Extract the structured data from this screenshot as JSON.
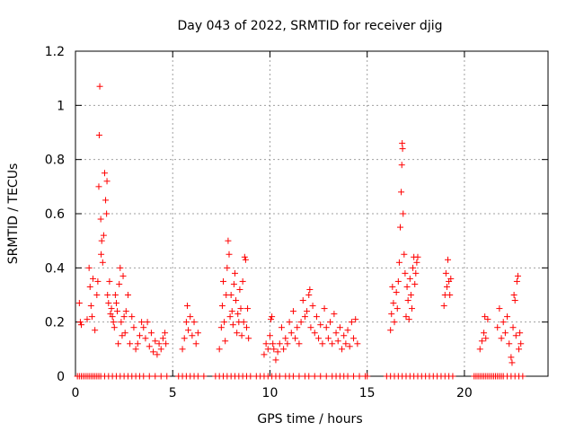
{
  "chart_data": {
    "type": "scatter",
    "title": "Day 043 of 2022, SRMTID for receiver djig",
    "xlabel": "GPS time / hours",
    "ylabel": "SRMTID / TECUs",
    "xlim": [
      0,
      24.3
    ],
    "ylim": [
      0,
      1.2
    ],
    "grid": true,
    "x_ticks": [
      0,
      5,
      10,
      15,
      20
    ],
    "x_tick_labels": [
      "0",
      "5",
      "10",
      "15",
      "20"
    ],
    "y_ticks": [
      0,
      0.2,
      0.4,
      0.6,
      0.8,
      1.0,
      1.2
    ],
    "y_tick_labels": [
      "0",
      "0.2",
      "0.4",
      "0.6",
      "0.8",
      "1",
      "1.2"
    ],
    "marker": "+",
    "color": "#ff0000",
    "series": [
      {
        "name": "djig",
        "points": [
          [
            0.2,
            0.27
          ],
          [
            0.25,
            0.2
          ],
          [
            0.3,
            0.19
          ],
          [
            0.6,
            0.21
          ],
          [
            0.7,
            0.4
          ],
          [
            0.75,
            0.33
          ],
          [
            0.8,
            0.26
          ],
          [
            0.85,
            0.22
          ],
          [
            0.9,
            0.36
          ],
          [
            1.0,
            0.17
          ],
          [
            1.1,
            0.3
          ],
          [
            1.15,
            0.35
          ],
          [
            1.2,
            0.7
          ],
          [
            1.22,
            0.89
          ],
          [
            1.25,
            1.07
          ],
          [
            1.3,
            0.58
          ],
          [
            1.32,
            0.45
          ],
          [
            1.35,
            0.5
          ],
          [
            1.4,
            0.42
          ],
          [
            1.45,
            0.52
          ],
          [
            1.5,
            0.75
          ],
          [
            1.55,
            0.65
          ],
          [
            1.6,
            0.6
          ],
          [
            1.62,
            0.72
          ],
          [
            1.65,
            0.3
          ],
          [
            1.7,
            0.27
          ],
          [
            1.75,
            0.35
          ],
          [
            1.8,
            0.23
          ],
          [
            1.85,
            0.25
          ],
          [
            1.9,
            0.22
          ],
          [
            1.95,
            0.2
          ],
          [
            2.0,
            0.18
          ],
          [
            2.05,
            0.3
          ],
          [
            2.1,
            0.27
          ],
          [
            2.15,
            0.24
          ],
          [
            2.2,
            0.12
          ],
          [
            2.25,
            0.34
          ],
          [
            2.3,
            0.4
          ],
          [
            2.35,
            0.2
          ],
          [
            2.4,
            0.15
          ],
          [
            2.45,
            0.37
          ],
          [
            2.5,
            0.22
          ],
          [
            2.55,
            0.16
          ],
          [
            2.6,
            0.24
          ],
          [
            2.7,
            0.3
          ],
          [
            2.8,
            0.12
          ],
          [
            2.9,
            0.22
          ],
          [
            3.0,
            0.18
          ],
          [
            3.1,
            0.1
          ],
          [
            3.2,
            0.12
          ],
          [
            3.3,
            0.15
          ],
          [
            3.4,
            0.2
          ],
          [
            3.5,
            0.18
          ],
          [
            3.6,
            0.14
          ],
          [
            3.7,
            0.2
          ],
          [
            3.8,
            0.11
          ],
          [
            3.9,
            0.16
          ],
          [
            4.0,
            0.09
          ],
          [
            4.1,
            0.13
          ],
          [
            4.2,
            0.08
          ],
          [
            4.3,
            0.12
          ],
          [
            4.4,
            0.1
          ],
          [
            4.5,
            0.14
          ],
          [
            4.6,
            0.16
          ],
          [
            4.65,
            0.12
          ],
          [
            5.5,
            0.1
          ],
          [
            5.6,
            0.14
          ],
          [
            5.7,
            0.2
          ],
          [
            5.75,
            0.26
          ],
          [
            5.8,
            0.17
          ],
          [
            5.9,
            0.22
          ],
          [
            6.0,
            0.15
          ],
          [
            6.1,
            0.2
          ],
          [
            6.2,
            0.12
          ],
          [
            6.3,
            0.16
          ],
          [
            7.4,
            0.1
          ],
          [
            7.5,
            0.18
          ],
          [
            7.55,
            0.26
          ],
          [
            7.6,
            0.35
          ],
          [
            7.65,
            0.2
          ],
          [
            7.7,
            0.13
          ],
          [
            7.75,
            0.3
          ],
          [
            7.8,
            0.4
          ],
          [
            7.85,
            0.5
          ],
          [
            7.9,
            0.45
          ],
          [
            7.95,
            0.22
          ],
          [
            8.0,
            0.3
          ],
          [
            8.05,
            0.24
          ],
          [
            8.1,
            0.19
          ],
          [
            8.15,
            0.34
          ],
          [
            8.2,
            0.38
          ],
          [
            8.25,
            0.28
          ],
          [
            8.3,
            0.16
          ],
          [
            8.35,
            0.23
          ],
          [
            8.4,
            0.2
          ],
          [
            8.45,
            0.32
          ],
          [
            8.5,
            0.25
          ],
          [
            8.55,
            0.15
          ],
          [
            8.6,
            0.35
          ],
          [
            8.65,
            0.2
          ],
          [
            8.7,
            0.44
          ],
          [
            8.75,
            0.43
          ],
          [
            8.8,
            0.18
          ],
          [
            8.85,
            0.25
          ],
          [
            8.9,
            0.14
          ],
          [
            9.7,
            0.08
          ],
          [
            9.8,
            0.12
          ],
          [
            9.9,
            0.1
          ],
          [
            10.0,
            0.15
          ],
          [
            10.05,
            0.21
          ],
          [
            10.1,
            0.22
          ],
          [
            10.15,
            0.12
          ],
          [
            10.2,
            0.1
          ],
          [
            10.3,
            0.06
          ],
          [
            10.4,
            0.09
          ],
          [
            10.5,
            0.12
          ],
          [
            10.6,
            0.18
          ],
          [
            10.7,
            0.1
          ],
          [
            10.8,
            0.14
          ],
          [
            10.9,
            0.12
          ],
          [
            11.0,
            0.2
          ],
          [
            11.1,
            0.16
          ],
          [
            11.2,
            0.24
          ],
          [
            11.3,
            0.14
          ],
          [
            11.4,
            0.18
          ],
          [
            11.5,
            0.12
          ],
          [
            11.6,
            0.2
          ],
          [
            11.7,
            0.28
          ],
          [
            11.8,
            0.22
          ],
          [
            11.9,
            0.24
          ],
          [
            12.0,
            0.3
          ],
          [
            12.05,
            0.32
          ],
          [
            12.1,
            0.18
          ],
          [
            12.2,
            0.26
          ],
          [
            12.3,
            0.16
          ],
          [
            12.4,
            0.22
          ],
          [
            12.5,
            0.14
          ],
          [
            12.6,
            0.19
          ],
          [
            12.7,
            0.12
          ],
          [
            12.8,
            0.25
          ],
          [
            12.9,
            0.18
          ],
          [
            13.0,
            0.14
          ],
          [
            13.1,
            0.2
          ],
          [
            13.2,
            0.12
          ],
          [
            13.3,
            0.23
          ],
          [
            13.4,
            0.16
          ],
          [
            13.5,
            0.13
          ],
          [
            13.6,
            0.18
          ],
          [
            13.7,
            0.1
          ],
          [
            13.8,
            0.15
          ],
          [
            13.9,
            0.12
          ],
          [
            14.0,
            0.17
          ],
          [
            14.1,
            0.11
          ],
          [
            14.2,
            0.2
          ],
          [
            14.3,
            0.14
          ],
          [
            14.4,
            0.21
          ],
          [
            14.5,
            0.12
          ],
          [
            16.2,
            0.17
          ],
          [
            16.25,
            0.23
          ],
          [
            16.3,
            0.33
          ],
          [
            16.35,
            0.27
          ],
          [
            16.4,
            0.2
          ],
          [
            16.5,
            0.31
          ],
          [
            16.55,
            0.25
          ],
          [
            16.6,
            0.35
          ],
          [
            16.65,
            0.42
          ],
          [
            16.7,
            0.55
          ],
          [
            16.75,
            0.68
          ],
          [
            16.78,
            0.78
          ],
          [
            16.8,
            0.86
          ],
          [
            16.82,
            0.84
          ],
          [
            16.85,
            0.6
          ],
          [
            16.9,
            0.45
          ],
          [
            16.95,
            0.38
          ],
          [
            17.0,
            0.22
          ],
          [
            17.05,
            0.33
          ],
          [
            17.1,
            0.28
          ],
          [
            17.15,
            0.21
          ],
          [
            17.2,
            0.36
          ],
          [
            17.25,
            0.3
          ],
          [
            17.3,
            0.25
          ],
          [
            17.35,
            0.4
          ],
          [
            17.4,
            0.44
          ],
          [
            17.45,
            0.34
          ],
          [
            17.5,
            0.38
          ],
          [
            17.55,
            0.42
          ],
          [
            17.6,
            0.44
          ],
          [
            18.95,
            0.26
          ],
          [
            19.0,
            0.3
          ],
          [
            19.05,
            0.38
          ],
          [
            19.1,
            0.33
          ],
          [
            19.15,
            0.43
          ],
          [
            19.2,
            0.35
          ],
          [
            19.25,
            0.3
          ],
          [
            19.3,
            0.36
          ],
          [
            20.8,
            0.1
          ],
          [
            20.9,
            0.13
          ],
          [
            21.0,
            0.16
          ],
          [
            21.05,
            0.22
          ],
          [
            21.1,
            0.14
          ],
          [
            21.2,
            0.21
          ],
          [
            21.7,
            0.18
          ],
          [
            21.8,
            0.25
          ],
          [
            21.9,
            0.14
          ],
          [
            22.0,
            0.2
          ],
          [
            22.1,
            0.16
          ],
          [
            22.2,
            0.22
          ],
          [
            22.3,
            0.12
          ],
          [
            22.4,
            0.07
          ],
          [
            22.45,
            0.05
          ],
          [
            22.5,
            0.18
          ],
          [
            22.55,
            0.3
          ],
          [
            22.6,
            0.28
          ],
          [
            22.65,
            0.15
          ],
          [
            22.7,
            0.35
          ],
          [
            22.75,
            0.37
          ],
          [
            22.8,
            0.1
          ],
          [
            22.85,
            0.16
          ],
          [
            22.9,
            0.12
          ]
        ],
        "zero_points": [
          0.1,
          0.2,
          0.3,
          0.4,
          0.5,
          0.6,
          0.7,
          0.8,
          0.9,
          1.0,
          1.1,
          1.2,
          1.3,
          1.5,
          1.7,
          1.9,
          2.1,
          2.3,
          2.5,
          2.7,
          2.9,
          3.1,
          3.3,
          3.5,
          3.8,
          4.1,
          4.4,
          4.7,
          5.3,
          5.5,
          5.7,
          5.9,
          6.1,
          6.3,
          6.6,
          7.2,
          7.4,
          7.6,
          7.8,
          8.0,
          8.2,
          8.4,
          8.6,
          8.8,
          9.0,
          9.3,
          9.5,
          9.7,
          9.9,
          10.1,
          10.3,
          10.5,
          10.8,
          11.0,
          11.2,
          11.5,
          11.8,
          12.0,
          12.3,
          12.6,
          12.9,
          13.2,
          13.4,
          13.6,
          13.8,
          14.0,
          14.3,
          14.6,
          14.9,
          15.0,
          16.0,
          16.2,
          16.4,
          16.6,
          16.8,
          17.0,
          17.2,
          17.4,
          17.6,
          17.8,
          18.0,
          18.2,
          18.4,
          18.6,
          18.8,
          19.0,
          19.2,
          19.4,
          20.5,
          20.6,
          20.7,
          20.8,
          20.9,
          21.0,
          21.1,
          21.2,
          21.3,
          21.4,
          21.5,
          21.6,
          21.7,
          21.8,
          21.9,
          22.0,
          22.2,
          22.4,
          22.6,
          22.8,
          23.0
        ]
      }
    ]
  }
}
